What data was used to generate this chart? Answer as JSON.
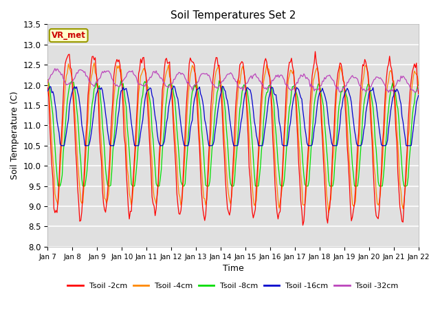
{
  "title": "Soil Temperatures Set 2",
  "xlabel": "Time",
  "ylabel": "Soil Temperature (C)",
  "ylim": [
    8.0,
    13.5
  ],
  "tick_labels": [
    "Jan 7",
    "Jan 8",
    "Jan 9",
    "Jan 10",
    "Jan 11",
    "Jan 12",
    "Jan 13",
    "Jan 14",
    "Jan 15",
    "Jan 16",
    "Jan 17",
    "Jan 18",
    "Jan 19",
    "Jan 20",
    "Jan 21",
    "Jan 22"
  ],
  "series_colors": [
    "#ff0000",
    "#ff8800",
    "#00dd00",
    "#0000cc",
    "#bb44bb"
  ],
  "series_labels": [
    "Tsoil -2cm",
    "Tsoil -4cm",
    "Tsoil -8cm",
    "Tsoil -16cm",
    "Tsoil -32cm"
  ],
  "bg_color": "#e0e0e0",
  "grid_color": "#ffffff",
  "annotation_text": "VR_met",
  "annotation_bg": "#ffffcc",
  "annotation_edge": "#999900"
}
